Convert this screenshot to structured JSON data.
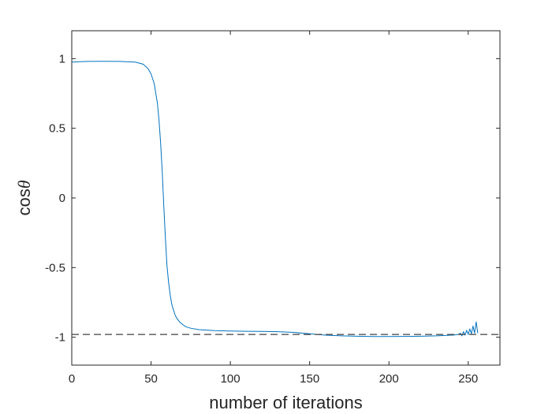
{
  "chart_data": {
    "type": "line",
    "title": "",
    "xlabel": "number of iterations",
    "ylabel": {
      "prefix": "cos",
      "symbol": "θ"
    },
    "xlim": [
      0,
      270
    ],
    "ylim": [
      -1.2,
      1.2
    ],
    "xticks": [
      0,
      50,
      100,
      150,
      200,
      250
    ],
    "yticks": [
      1,
      0.5,
      0,
      -0.5,
      -1
    ],
    "xtick_labels": [
      "0",
      "50",
      "100",
      "150",
      "200",
      "250"
    ],
    "ytick_labels": [
      "1",
      "0.5",
      "0",
      "-0.5",
      "-1"
    ],
    "grid": false,
    "box": true,
    "series": [
      {
        "style": "solid",
        "color": "#0072BD",
        "x": [
          0,
          5,
          10,
          20,
          30,
          40,
          45,
          48,
          50,
          52,
          54,
          55,
          56,
          57,
          58,
          59,
          60,
          61,
          62,
          63,
          64,
          65,
          66,
          68,
          70,
          72,
          75,
          80,
          90,
          100,
          110,
          120,
          130,
          140,
          150,
          160,
          170,
          180,
          190,
          200,
          210,
          220,
          230,
          240,
          244,
          245,
          246,
          247,
          248,
          249,
          250,
          251,
          252,
          253,
          254,
          255,
          256
        ],
        "y": [
          0.975,
          0.978,
          0.98,
          0.981,
          0.98,
          0.975,
          0.96,
          0.93,
          0.89,
          0.82,
          0.68,
          0.56,
          0.4,
          0.2,
          -0.05,
          -0.28,
          -0.48,
          -0.6,
          -0.69,
          -0.76,
          -0.8,
          -0.835,
          -0.86,
          -0.89,
          -0.91,
          -0.925,
          -0.935,
          -0.945,
          -0.952,
          -0.955,
          -0.957,
          -0.958,
          -0.96,
          -0.965,
          -0.975,
          -0.985,
          -0.99,
          -0.993,
          -0.995,
          -0.995,
          -0.994,
          -0.993,
          -0.99,
          -0.985,
          -0.98,
          -0.97,
          -0.99,
          -0.96,
          -0.985,
          -0.95,
          -0.98,
          -0.94,
          -0.975,
          -0.92,
          -0.97,
          -0.89,
          -0.97
        ]
      },
      {
        "style": "dashed",
        "color": "#404040",
        "x": [
          0,
          270
        ],
        "y": [
          -0.98,
          -0.98
        ]
      }
    ]
  }
}
